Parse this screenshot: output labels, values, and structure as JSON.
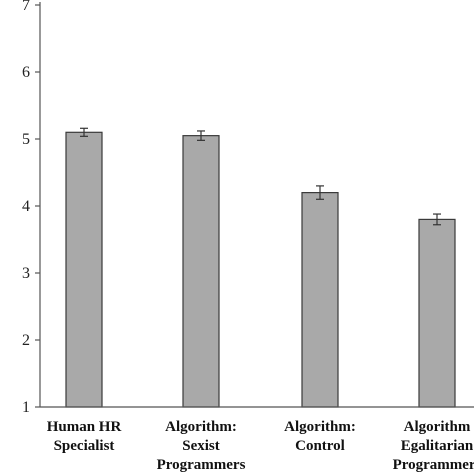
{
  "chart_data": {
    "type": "bar",
    "title": "",
    "xlabel": "",
    "ylabel": "",
    "ylim": [
      1,
      7
    ],
    "yticks": [
      1,
      2,
      3,
      4,
      5,
      6,
      7
    ],
    "grid": false,
    "legend": "none",
    "bar_color": "#a9a9a9",
    "categories": [
      [
        "Human HR",
        "Specialist"
      ],
      [
        "Algorithm:",
        "Sexist",
        "Programmers"
      ],
      [
        "Algorithm:",
        "Control"
      ],
      [
        "Algorithm",
        "Egalitarian",
        "Programmers"
      ]
    ],
    "values": [
      5.1,
      5.05,
      4.2,
      3.8
    ],
    "errors": [
      0.06,
      0.07,
      0.1,
      0.08
    ]
  }
}
